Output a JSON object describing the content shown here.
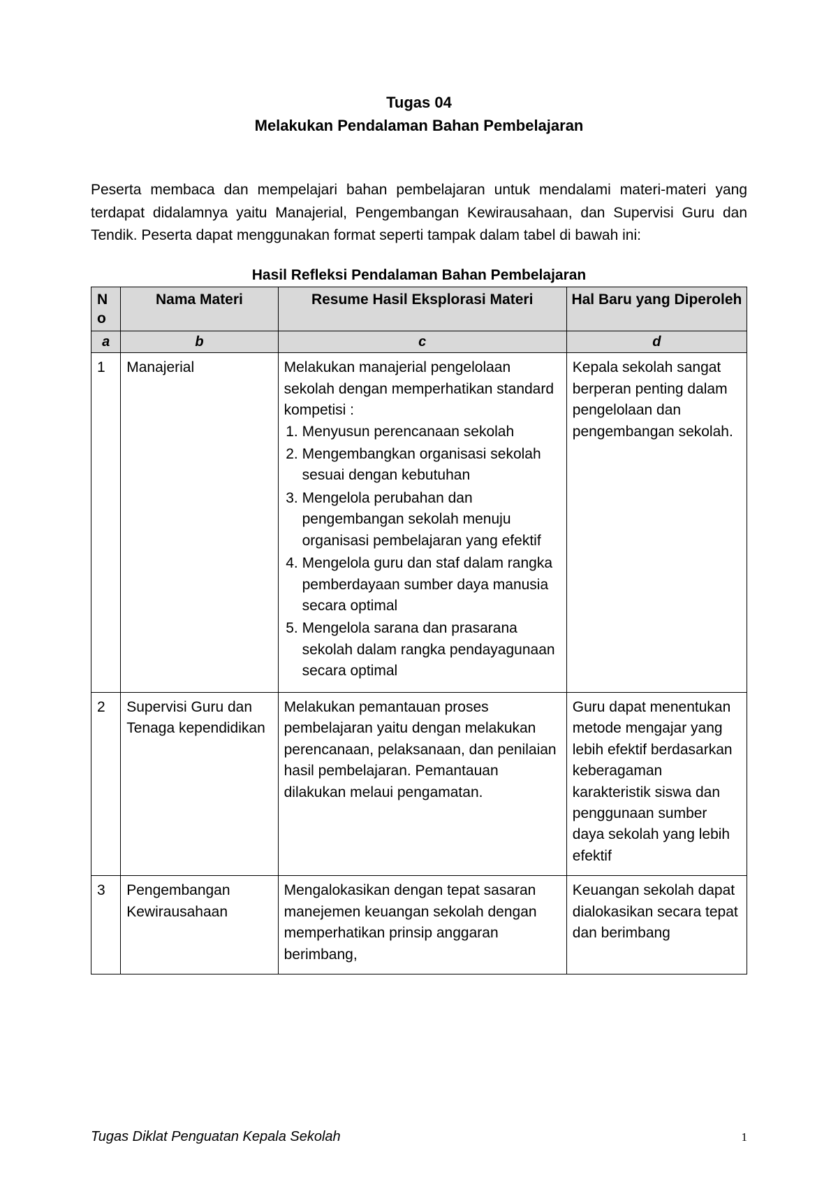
{
  "title": {
    "line1": "Tugas 04",
    "line2": "Melakukan Pendalaman Bahan Pembelajaran"
  },
  "intro": "Peserta membaca dan mempelajari bahan pembelajaran untuk mendalami materi-materi yang terdapat didalamnya yaitu Manajerial, Pengembangan Kewirausahaan, dan Supervisi Guru dan Tendik. Peserta dapat menggunakan format seperti tampak dalam tabel di bawah ini:",
  "table_title": "Hasil Refleksi Pendalaman Bahan Pembelajaran",
  "headers": {
    "no": "N\no",
    "nama": "Nama Materi",
    "resume": "Resume Hasil Eksplorasi Materi",
    "hal": "Hal Baru yang Diperoleh"
  },
  "subheaders": {
    "a": "a",
    "b": "b",
    "c": "c",
    "d": "d"
  },
  "rows": [
    {
      "no": "1",
      "nama": "Manajerial",
      "resume_intro": "Melakukan manajerial pengelolaan sekolah dengan memperhatikan standard kompetisi :",
      "resume_items": [
        "Menyusun perencanaan sekolah",
        "Mengembangkan organisasi sekolah sesuai dengan kebutuhan",
        "Mengelola perubahan dan pengembangan sekolah menuju organisasi pembelajaran yang efektif",
        "Mengelola guru dan staf dalam rangka pemberdayaan sumber daya manusia secara optimal",
        "Mengelola sarana dan prasarana sekolah dalam rangka pendayagunaan secara optimal"
      ],
      "hal": "Kepala sekolah sangat berperan penting dalam pengelolaan dan pengembangan sekolah."
    },
    {
      "no": "2",
      "nama": "Supervisi Guru dan Tenaga kependidikan",
      "resume_text": "Melakukan pemantauan proses pembelajaran yaitu dengan melakukan perencanaan, pelaksanaan, dan penilaian hasil pembelajaran. Pemantauan dilakukan melaui pengamatan.",
      "hal": "Guru dapat menentukan metode mengajar yang lebih efektif berdasarkan keberagaman karakteristik siswa dan penggunaan sumber daya sekolah yang lebih efektif"
    },
    {
      "no": "3",
      "nama": "Pengembangan Kewirausahaan",
      "resume_text": "Mengalokasikan dengan tepat sasaran manejemen keuangan sekolah dengan memperhatikan prinsip anggaran berimbang,",
      "hal": "Keuangan sekolah dapat dialokasikan secara tepat dan berimbang"
    }
  ],
  "footer": {
    "text": "Tugas  Diklat Penguatan Kepala Sekolah",
    "page": "1"
  }
}
